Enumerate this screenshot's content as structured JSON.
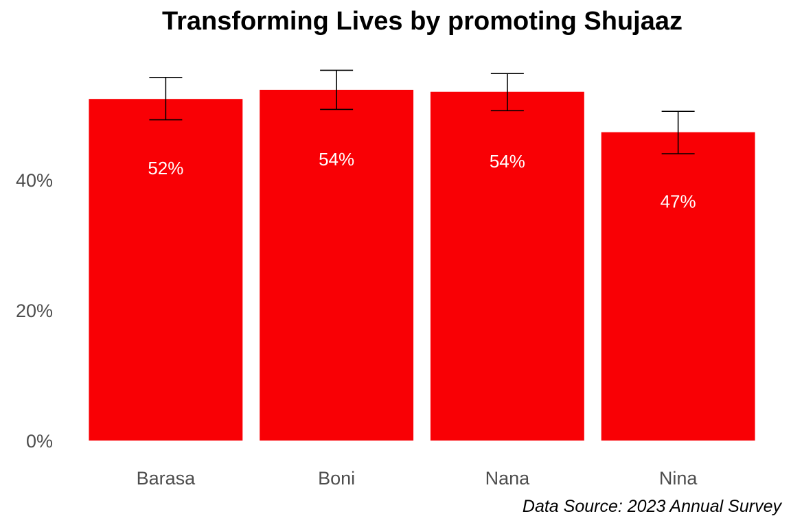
{
  "chart_data": {
    "type": "bar",
    "title": "Transforming Lives by promoting Shujaaz",
    "caption": "Data Source: 2023 Annual Survey",
    "xlabel": "",
    "ylabel": "",
    "categories": [
      "Barasa",
      "Boni",
      "Nana",
      "Nina"
    ],
    "values": [
      52.4,
      53.8,
      53.5,
      47.3
    ],
    "value_labels": [
      "52%",
      "54%",
      "54%",
      "47%"
    ],
    "error_low": [
      49.2,
      50.8,
      50.6,
      44.0
    ],
    "error_high": [
      55.7,
      56.8,
      56.3,
      50.5
    ],
    "ylim": [
      0,
      58
    ],
    "y_ticks": [
      0,
      20,
      40
    ],
    "y_tick_labels": [
      "0%",
      "20%",
      "40%"
    ],
    "grid": false,
    "legend": "none",
    "bar_color": "#f90005",
    "error_bar_color": "#000000",
    "value_label_color": "#ffffff"
  }
}
